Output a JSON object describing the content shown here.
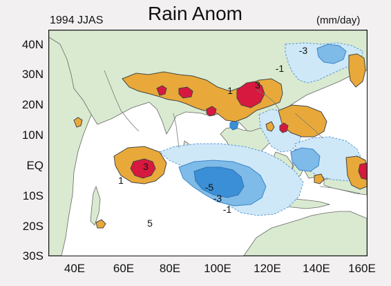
{
  "titles": {
    "main": "Rain Anom",
    "left": "1994 JJAS",
    "right": "(mm/day)"
  },
  "axes": {
    "y_labels": [
      "40N",
      "30N",
      "20N",
      "10N",
      "EQ",
      "10S",
      "20S",
      "30S"
    ],
    "x_labels": [
      "40E",
      "60E",
      "80E",
      "100E",
      "120E",
      "140E",
      "160E"
    ]
  },
  "contour_labels": [
    {
      "text": "3"
    },
    {
      "text": "3"
    },
    {
      "text": "1"
    },
    {
      "text": "1"
    },
    {
      "text": "-3"
    },
    {
      "text": "-1"
    },
    {
      "text": "-5"
    },
    {
      "text": "-3"
    },
    {
      "text": "-1"
    },
    {
      "text": "5"
    }
  ],
  "legend": {
    "colors": {
      "positive_mid": "#e8a93a",
      "positive_high": "#d7193f",
      "negative_light": "#cfe8f8",
      "negative_mid": "#7fbbe8",
      "negative_high": "#3a8fd6",
      "land": "#d9ead0"
    }
  }
}
